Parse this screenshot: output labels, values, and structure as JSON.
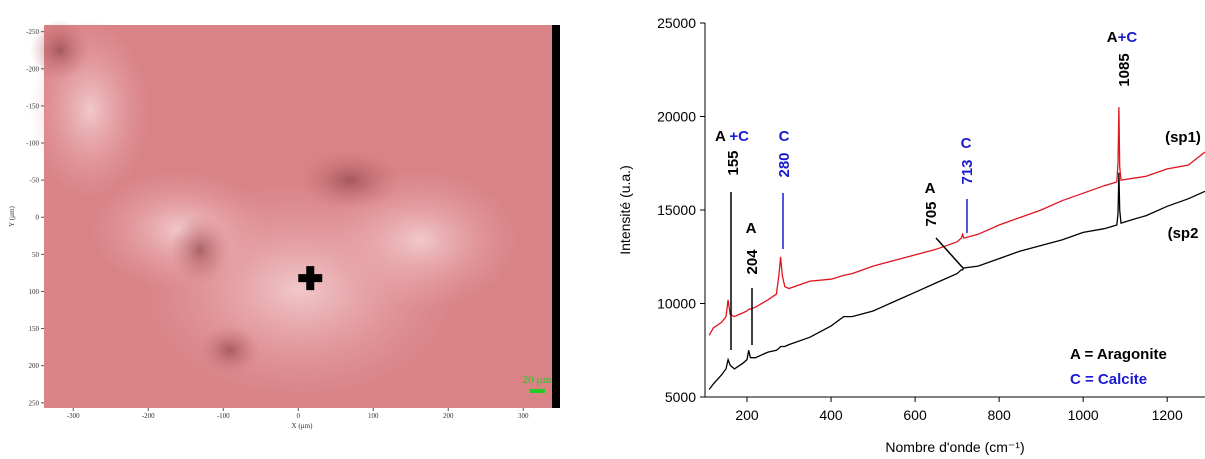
{
  "chart_data": [
    {
      "type": "image",
      "xlabel": "X (µm)",
      "ylabel": "Y (µm)",
      "xlim": [
        -339,
        349
      ],
      "ylim": [
        -259,
        257
      ],
      "y_inverted": true,
      "xticks": [
        -300,
        -200,
        -100,
        0,
        100,
        200,
        300
      ],
      "yticks": [
        -250,
        -200,
        -150,
        -100,
        -50,
        0,
        50,
        100,
        150,
        200,
        250
      ],
      "marker": {
        "x": 16,
        "y": 82
      },
      "scale_bar": {
        "label": "20 µm",
        "length": 20,
        "color": "#22cc22"
      }
    },
    {
      "type": "line",
      "xlabel": "Nombre d'onde (cm⁻¹)",
      "ylabel": "Intensité (u.a.)",
      "xlim": [
        100,
        1290
      ],
      "ylim": [
        5000,
        25000
      ],
      "xticks": [
        200,
        400,
        600,
        800,
        1000,
        1200
      ],
      "yticks": [
        5000,
        10000,
        15000,
        20000,
        25000
      ],
      "x": [
        110,
        120,
        140,
        150,
        155,
        160,
        170,
        190,
        200,
        204,
        208,
        220,
        250,
        270,
        276,
        280,
        284,
        290,
        300,
        350,
        400,
        430,
        450,
        500,
        550,
        600,
        650,
        700,
        705,
        710,
        713,
        716,
        750,
        800,
        850,
        900,
        950,
        1000,
        1050,
        1080,
        1083,
        1085,
        1087,
        1090,
        1120,
        1150,
        1200,
        1250,
        1290
      ],
      "series": [
        {
          "name": "(sp1)",
          "color": "#e0141e",
          "values": [
            8300,
            8700,
            9000,
            9300,
            10200,
            9400,
            9300,
            9500,
            9600,
            9700,
            9700,
            9800,
            10200,
            10500,
            11500,
            12500,
            11500,
            10900,
            10800,
            11200,
            11300,
            11500,
            11600,
            12000,
            12300,
            12600,
            12900,
            13300,
            13400,
            13500,
            13700,
            13500,
            13700,
            14200,
            14600,
            15000,
            15500,
            15900,
            16300,
            16500,
            17500,
            20500,
            17300,
            16600,
            16700,
            16800,
            17200,
            17400,
            18100
          ]
        },
        {
          "name": "(sp2",
          "color": "#000000",
          "values": [
            5400,
            5700,
            6200,
            6500,
            7000,
            6700,
            6500,
            6800,
            7000,
            7500,
            7100,
            7100,
            7400,
            7500,
            7600,
            7700,
            7700,
            7700,
            7800,
            8200,
            8800,
            9300,
            9300,
            9600,
            10100,
            10600,
            11100,
            11600,
            11700,
            11800,
            11800,
            11900,
            12000,
            12400,
            12800,
            13100,
            13400,
            13800,
            14000,
            14200,
            14800,
            17000,
            15000,
            14300,
            14500,
            14700,
            15200,
            15600,
            16000
          ]
        }
      ],
      "peaks": [
        {
          "x": 155,
          "color": "#000000",
          "assign": [
            {
              "text": "A ",
              "color": "#000000"
            },
            {
              "text": "+C",
              "color": "#1a1ad0"
            }
          ]
        },
        {
          "x": 204,
          "color": "#000000",
          "assign": [
            {
              "text": "A",
              "color": "#000000"
            }
          ]
        },
        {
          "x": 280,
          "color": "#1a1ad0",
          "assign": [
            {
              "text": "C",
              "color": "#1a1ad0"
            }
          ]
        },
        {
          "x": 705,
          "color": "#000000",
          "assign": [
            {
              "text": "A",
              "color": "#000000"
            }
          ]
        },
        {
          "x": 713,
          "color": "#1a1ad0",
          "assign": [
            {
              "text": "C",
              "color": "#1a1ad0"
            }
          ]
        },
        {
          "x": 1085,
          "color": "#000000",
          "assign": [
            {
              "text": "A",
              "color": "#000000"
            },
            {
              "text": "+C",
              "color": "#1a1ad0"
            }
          ]
        }
      ],
      "key": [
        {
          "text": "A = Aragonite",
          "color": "#000000"
        },
        {
          "text": "C = Calcite",
          "color": "#1a1ad0"
        }
      ]
    }
  ]
}
